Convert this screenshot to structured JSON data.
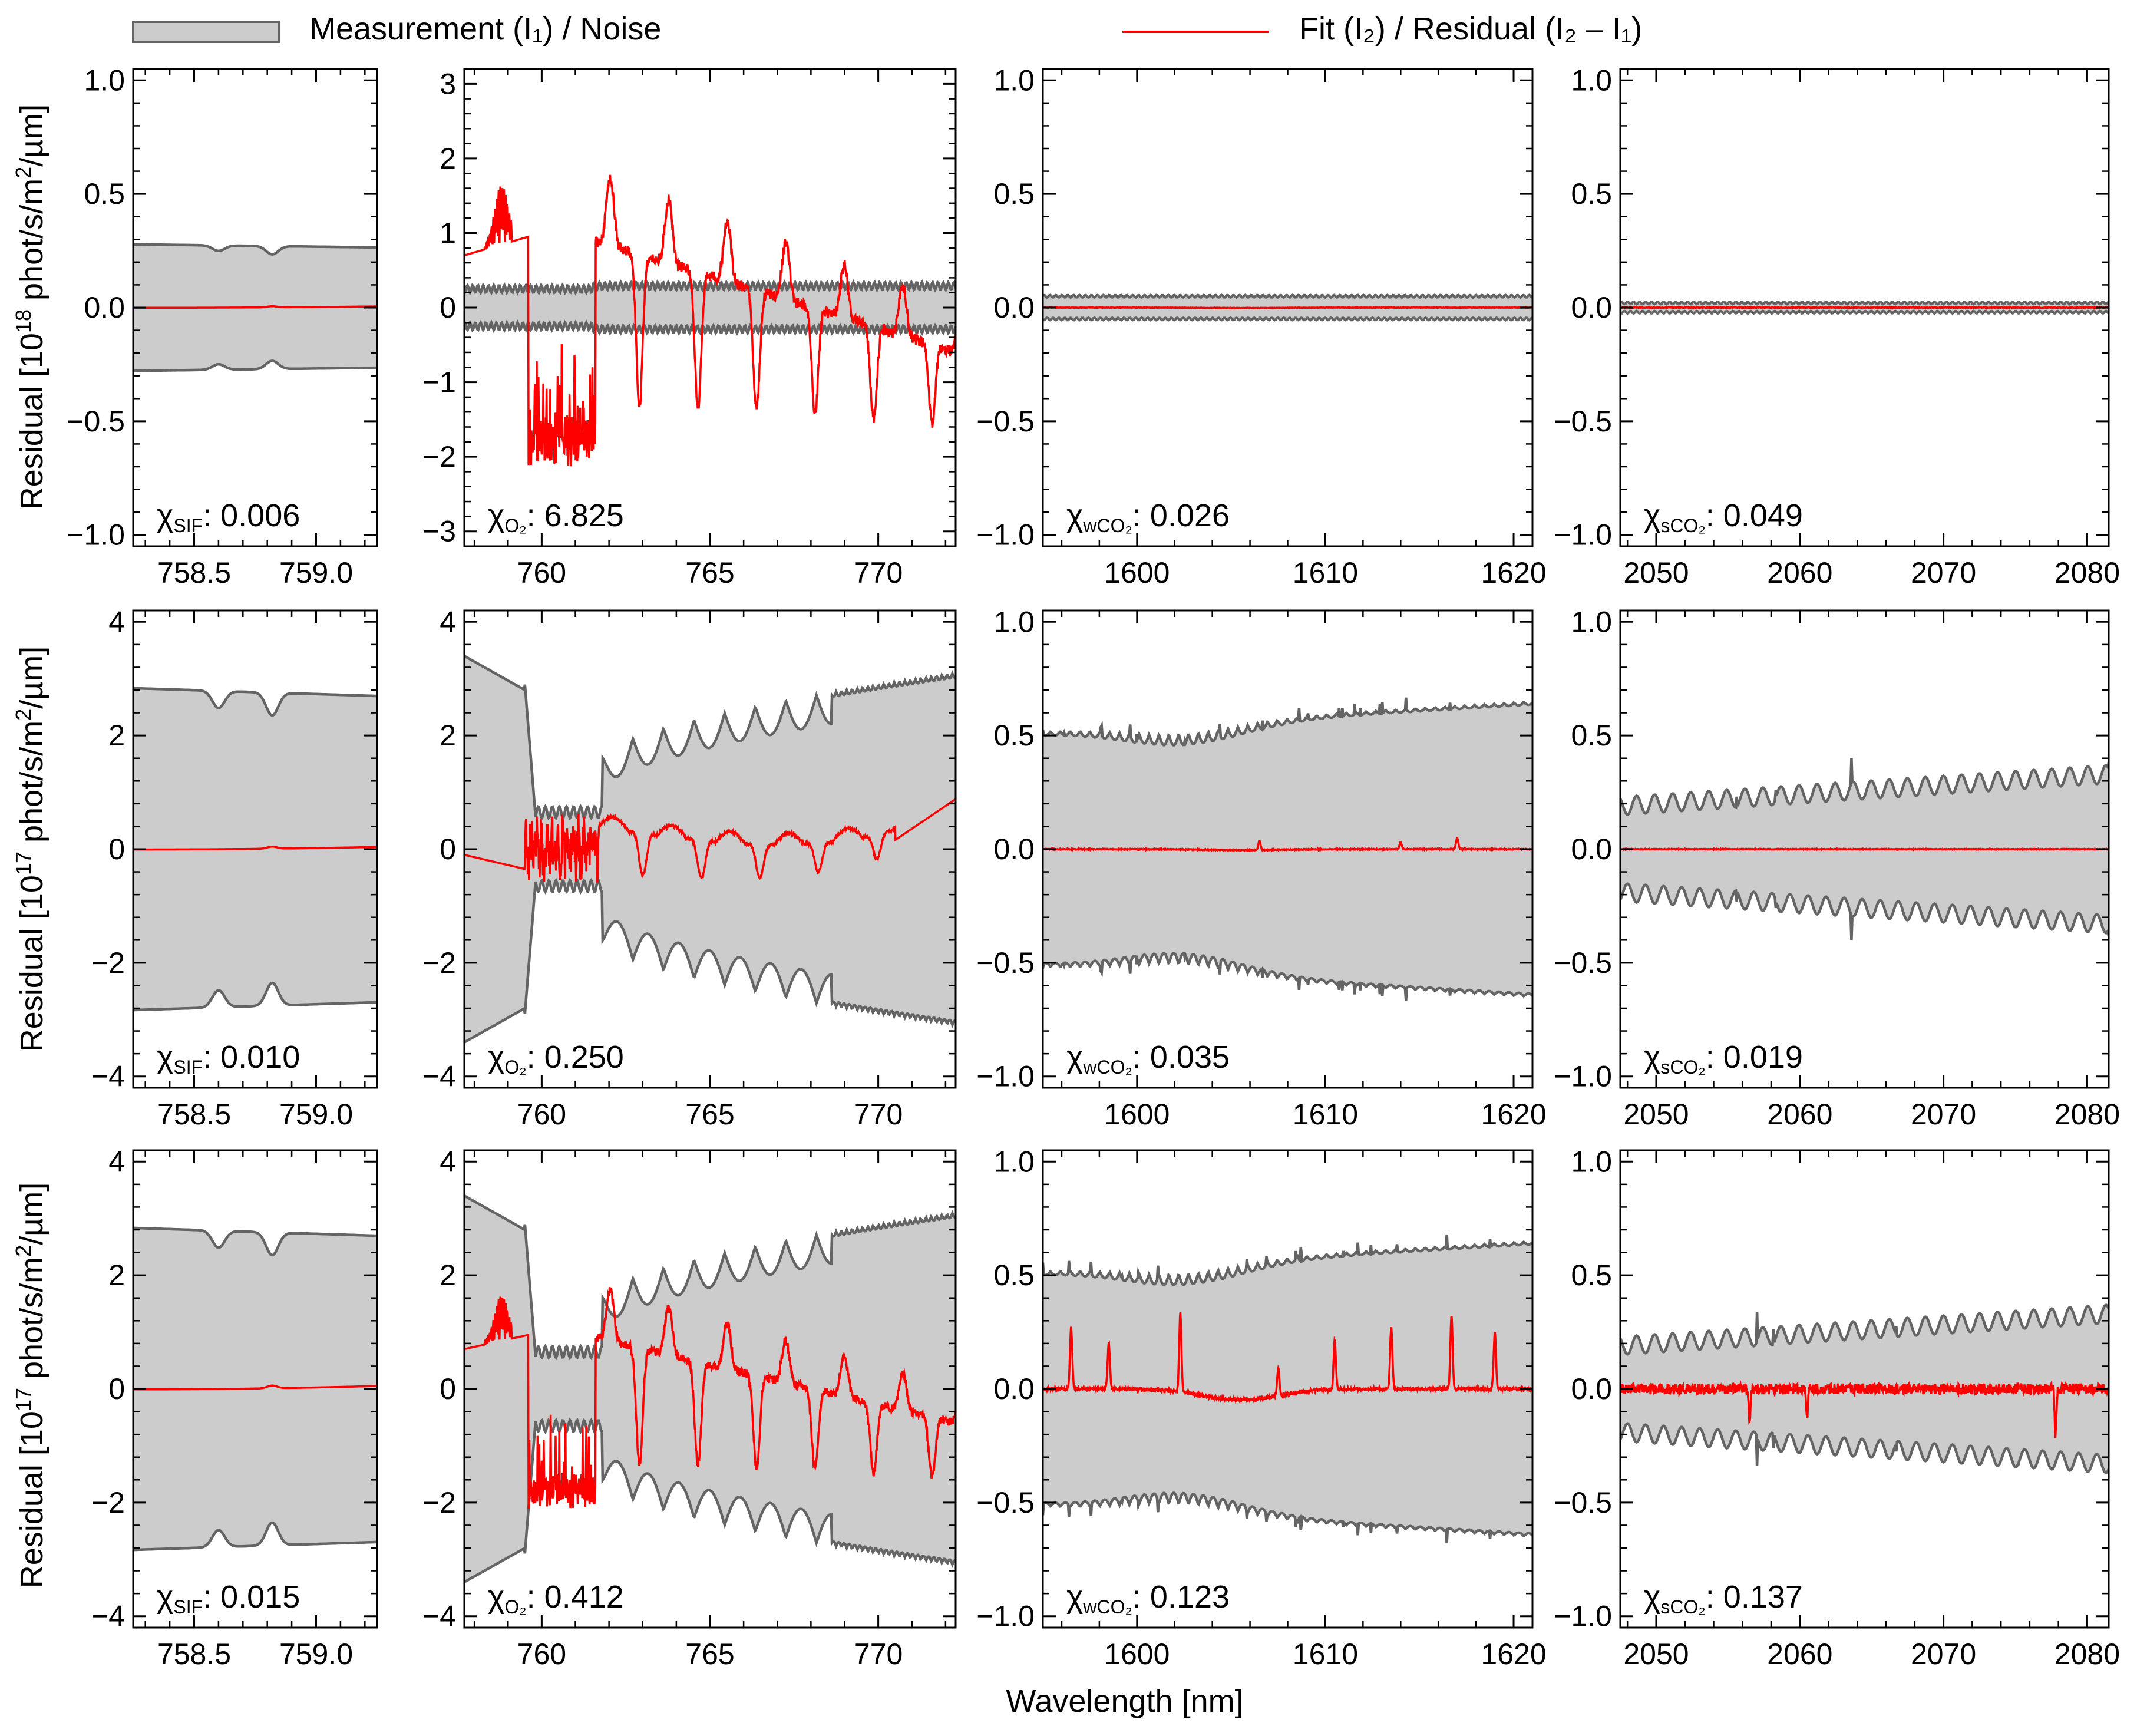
{
  "legend": {
    "measurement_label": "Measurement (I₁) / Noise",
    "fit_label": "Fit (I₂) / Residual (I₂ – I₁)"
  },
  "colors": {
    "noise_fill": "#cccccc",
    "noise_line": "#646464",
    "residual_line": "#ff0000",
    "axis": "#000000"
  },
  "xlabel": "Wavelength [nm]",
  "row_ylabels": [
    {
      "pre": "Residual [10",
      "exp": "18",
      "post": " phot/s/m",
      "sq": "2",
      "end": "/µm]"
    },
    {
      "pre": "Residual [10",
      "exp": "17",
      "post": " phot/s/m",
      "sq": "2",
      "end": "/µm]"
    },
    {
      "pre": "Residual [10",
      "exp": "17",
      "post": " phot/s/m",
      "sq": "2",
      "end": "/µm]"
    }
  ],
  "chart_data": [
    {
      "type": "area+line",
      "row": 0,
      "col": 0,
      "band": "SIF",
      "chi_label": "χ",
      "chi_sub": "SIF",
      "chi_value": ": 0.006",
      "xlim": [
        758.25,
        759.25
      ],
      "ylim": [
        -1.05,
        1.05
      ],
      "xticks": [
        758.5,
        759.0
      ],
      "xtick_labels": [
        "758.5",
        "759.0"
      ],
      "yticks": [
        -1.0,
        -0.5,
        0.0,
        0.5,
        1.0
      ],
      "ytick_labels": [
        "−1.0",
        "−0.5",
        "0.0",
        "0.5",
        "1.0"
      ],
      "noise_mean": 0.27,
      "dips": [
        [
          758.6,
          0.02
        ],
        [
          758.82,
          0.03
        ]
      ],
      "residual_amp": 0.004,
      "spikes": []
    },
    {
      "type": "area+line",
      "row": 0,
      "col": 1,
      "band": "O2",
      "chi_label": "χ",
      "chi_sub": "O₂",
      "chi_value": ": 6.825",
      "xlim": [
        757.7,
        772.3
      ],
      "ylim": [
        -3.2,
        3.2
      ],
      "xticks": [
        760,
        765,
        770
      ],
      "xtick_labels": [
        "760",
        "765",
        "770"
      ],
      "yticks": [
        -3,
        -2,
        -1,
        0,
        1,
        2,
        3
      ],
      "ytick_labels": [
        "−3",
        "−2",
        "−1",
        "0",
        "1",
        "2",
        "3"
      ],
      "noise_mean": 0.25,
      "residual_amp": 1.0,
      "spikes": []
    },
    {
      "type": "area+line",
      "row": 0,
      "col": 2,
      "band": "wCO2",
      "chi_label": "χ",
      "chi_sub": "wCO₂",
      "chi_value": ": 0.026",
      "xlim": [
        1595,
        1621
      ],
      "ylim": [
        -1.05,
        1.05
      ],
      "xticks": [
        1600,
        1610,
        1620
      ],
      "xtick_labels": [
        "1600",
        "1610",
        "1620"
      ],
      "yticks": [
        -1.0,
        -0.5,
        0.0,
        0.5,
        1.0
      ],
      "ytick_labels": [
        "−1.0",
        "−0.5",
        "0.0",
        "0.5",
        "1.0"
      ],
      "noise_mean": 0.05,
      "residual_amp": 0.004,
      "spikes": []
    },
    {
      "type": "area+line",
      "row": 0,
      "col": 3,
      "band": "sCO2",
      "chi_label": "χ",
      "chi_sub": "sCO₂",
      "chi_value": ": 0.049",
      "xlim": [
        2047.5,
        2081.5
      ],
      "ylim": [
        -1.05,
        1.05
      ],
      "xticks": [
        2050,
        2060,
        2070,
        2080
      ],
      "xtick_labels": [
        "2050",
        "2060",
        "2070",
        "2080"
      ],
      "yticks": [
        -1.0,
        -0.5,
        0.0,
        0.5,
        1.0
      ],
      "ytick_labels": [
        "−1.0",
        "−0.5",
        "0.0",
        "0.5",
        "1.0"
      ],
      "noise_mean": 0.02,
      "residual_amp": 0.003,
      "spikes": []
    },
    {
      "type": "area+line",
      "row": 1,
      "col": 0,
      "band": "SIF",
      "chi_label": "χ",
      "chi_sub": "SIF",
      "chi_value": ": 0.010",
      "xlim": [
        758.25,
        759.25
      ],
      "ylim": [
        -4.2,
        4.2
      ],
      "xticks": [
        758.5,
        759.0
      ],
      "xtick_labels": [
        "758.5",
        "759.0"
      ],
      "yticks": [
        -4,
        -2,
        0,
        2,
        4
      ],
      "ytick_labels": [
        "−4",
        "−2",
        "0",
        "2",
        "4"
      ],
      "noise_mean": 2.75,
      "dips": [
        [
          758.6,
          0.3
        ],
        [
          758.82,
          0.4
        ]
      ],
      "residual_amp": 0.03,
      "spikes": []
    },
    {
      "type": "area+line",
      "row": 1,
      "col": 1,
      "band": "O2",
      "chi_label": "χ",
      "chi_sub": "O₂",
      "chi_value": ": 0.250",
      "xlim": [
        757.7,
        772.3
      ],
      "ylim": [
        -4.2,
        4.2
      ],
      "xticks": [
        760,
        765,
        770
      ],
      "xtick_labels": [
        "760",
        "765",
        "770"
      ],
      "yticks": [
        -4,
        -2,
        0,
        2,
        4
      ],
      "ytick_labels": [
        "−4",
        "−2",
        "0",
        "2",
        "4"
      ],
      "noise_mean": 2.9,
      "residual_amp": 0.8,
      "spikes": []
    },
    {
      "type": "area+line",
      "row": 1,
      "col": 2,
      "band": "wCO2",
      "chi_label": "χ",
      "chi_sub": "wCO₂",
      "chi_value": ": 0.035",
      "xlim": [
        1595,
        1621
      ],
      "ylim": [
        -1.05,
        1.05
      ],
      "xticks": [
        1600,
        1610,
        1620
      ],
      "xtick_labels": [
        "1600",
        "1610",
        "1620"
      ],
      "yticks": [
        -1.0,
        -0.5,
        0.0,
        0.5,
        1.0
      ],
      "ytick_labels": [
        "−1.0",
        "−0.5",
        "0.0",
        "0.5",
        "1.0"
      ],
      "noise_mean": 0.55,
      "residual_amp": 0.01,
      "spikes": [
        [
          1606.5,
          0.04
        ],
        [
          1614,
          0.03
        ],
        [
          1617,
          0.05
        ]
      ]
    },
    {
      "type": "area+line",
      "row": 1,
      "col": 3,
      "band": "sCO2",
      "chi_label": "χ",
      "chi_sub": "sCO₂",
      "chi_value": ": 0.019",
      "xlim": [
        2047.5,
        2081.5
      ],
      "ylim": [
        -1.05,
        1.05
      ],
      "xticks": [
        2050,
        2060,
        2070,
        2080
      ],
      "xtick_labels": [
        "2050",
        "2060",
        "2070",
        "2080"
      ],
      "yticks": [
        -1.0,
        -0.5,
        0.0,
        0.5,
        1.0
      ],
      "ytick_labels": [
        "−1.0",
        "−0.5",
        "0.0",
        "0.5",
        "1.0"
      ],
      "noise_mean": 0.26,
      "residual_amp": 0.003,
      "spikes": []
    },
    {
      "type": "area+line",
      "row": 2,
      "col": 0,
      "band": "SIF",
      "chi_label": "χ",
      "chi_sub": "SIF",
      "chi_value": ": 0.015",
      "xlim": [
        758.25,
        759.25
      ],
      "ylim": [
        -4.2,
        4.2
      ],
      "xticks": [
        758.5,
        759.0
      ],
      "xtick_labels": [
        "758.5",
        "759.0"
      ],
      "yticks": [
        -4,
        -2,
        0,
        2,
        4
      ],
      "ytick_labels": [
        "−4",
        "−2",
        "0",
        "2",
        "4"
      ],
      "noise_mean": 2.75,
      "dips": [
        [
          758.6,
          0.3
        ],
        [
          758.82,
          0.4
        ]
      ],
      "residual_amp": 0.04,
      "spikes": []
    },
    {
      "type": "area+line",
      "row": 2,
      "col": 1,
      "band": "O2",
      "chi_label": "χ",
      "chi_sub": "O₂",
      "chi_value": ": 0.412",
      "xlim": [
        757.7,
        772.3
      ],
      "ylim": [
        -4.2,
        4.2
      ],
      "xticks": [
        760,
        765,
        770
      ],
      "xtick_labels": [
        "760",
        "765",
        "770"
      ],
      "yticks": [
        -4,
        -2,
        0,
        2,
        4
      ],
      "ytick_labels": [
        "−4",
        "−2",
        "0",
        "2",
        "4"
      ],
      "noise_mean": 2.9,
      "residual_amp": 1.8,
      "spikes": []
    },
    {
      "type": "area+line",
      "row": 2,
      "col": 2,
      "band": "wCO2",
      "chi_label": "χ",
      "chi_sub": "wCO₂",
      "chi_value": ": 0.123",
      "xlim": [
        1595,
        1621
      ],
      "ylim": [
        -1.05,
        1.05
      ],
      "xticks": [
        1600,
        1610,
        1620
      ],
      "xtick_labels": [
        "1600",
        "1610",
        "1620"
      ],
      "yticks": [
        -1.0,
        -0.5,
        0.0,
        0.5,
        1.0
      ],
      "ytick_labels": [
        "−1.0",
        "−0.5",
        "0.0",
        "0.5",
        "1.0"
      ],
      "noise_mean": 0.55,
      "residual_amp": 0.03,
      "spikes": [
        [
          1596.5,
          0.27
        ],
        [
          1598.5,
          0.2
        ],
        [
          1602.3,
          0.35
        ],
        [
          1607.5,
          0.12
        ],
        [
          1610.5,
          0.22
        ],
        [
          1613.5,
          0.27
        ],
        [
          1616.7,
          0.32
        ],
        [
          1619,
          0.25
        ]
      ]
    },
    {
      "type": "area+line",
      "row": 2,
      "col": 3,
      "band": "sCO2",
      "chi_label": "χ",
      "chi_sub": "sCO₂",
      "chi_value": ": 0.137",
      "xlim": [
        2047.5,
        2081.5
      ],
      "ylim": [
        -1.05,
        1.05
      ],
      "xticks": [
        2050,
        2060,
        2070,
        2080
      ],
      "xtick_labels": [
        "2050",
        "2060",
        "2070",
        "2080"
      ],
      "yticks": [
        -1.0,
        -0.5,
        0.0,
        0.5,
        1.0
      ],
      "ytick_labels": [
        "−1.0",
        "−0.5",
        "0.0",
        "0.5",
        "1.0"
      ],
      "noise_mean": 0.26,
      "residual_amp": 0.03,
      "spikes": [
        [
          2056.5,
          -0.14
        ],
        [
          2060.5,
          -0.12
        ],
        [
          2077.8,
          -0.2
        ]
      ]
    }
  ]
}
